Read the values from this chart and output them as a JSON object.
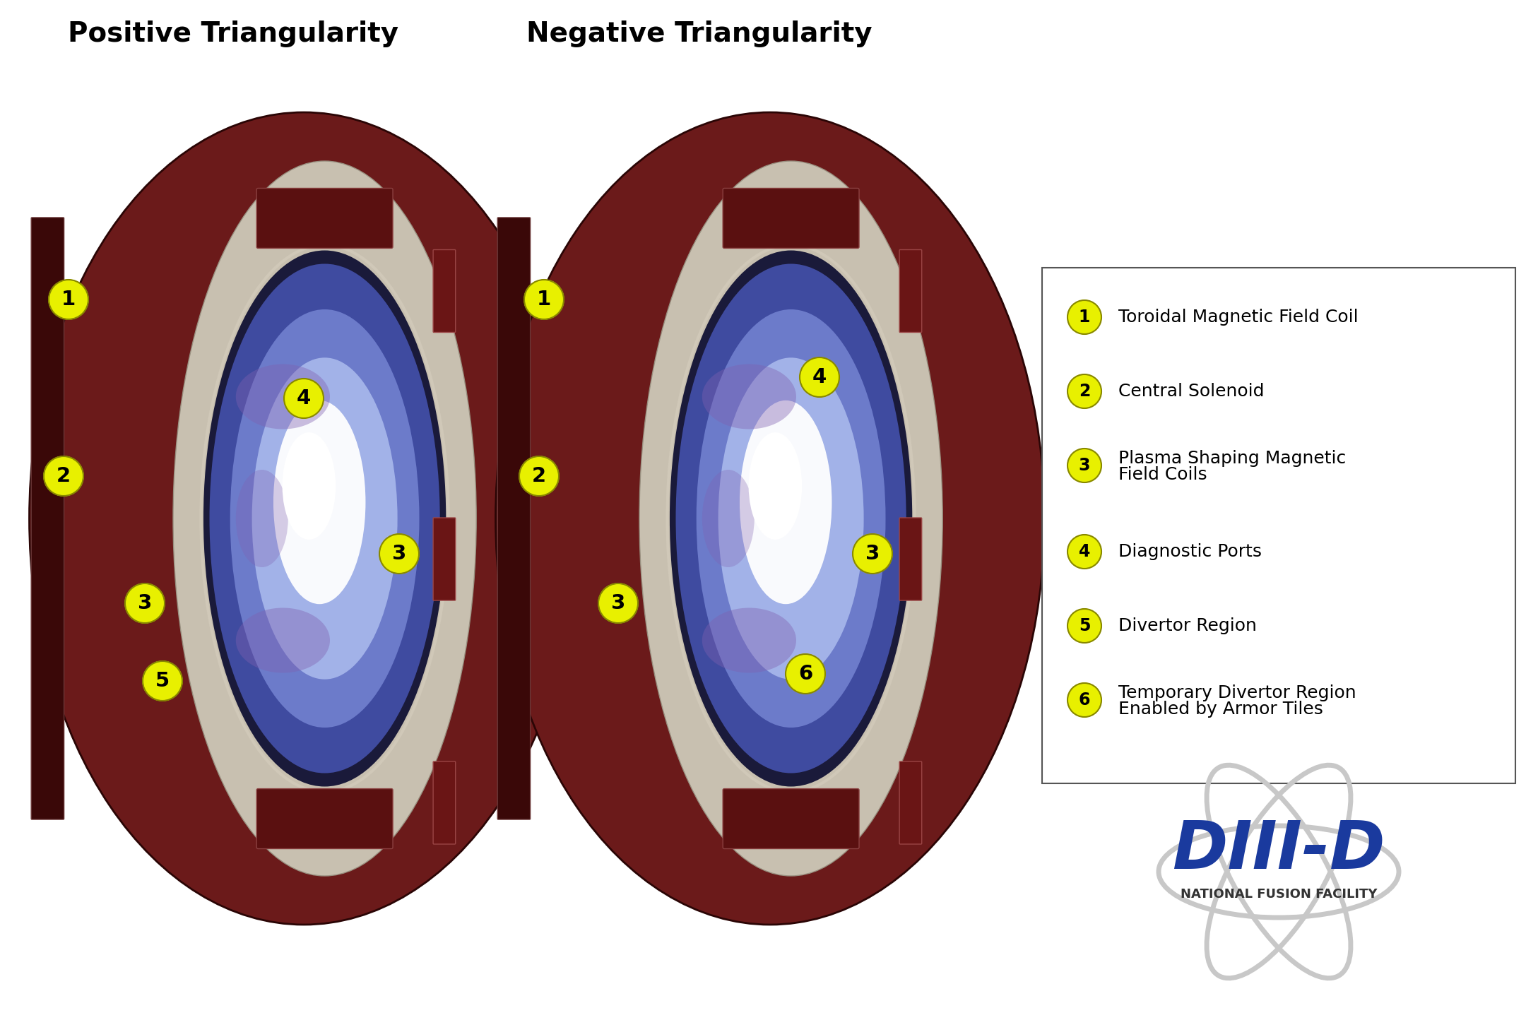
{
  "title_left": "Positive Triangularity",
  "title_right": "Negative Triangularity",
  "background_color": "#ffffff",
  "title_fontsize": 28,
  "title_fontweight": "bold",
  "legend_items": [
    {
      "num": "1",
      "text": "Toroidal Magnetic Field Coil"
    },
    {
      "num": "2",
      "text": "Central Solenoid"
    },
    {
      "num": "3",
      "text": "Plasma Shaping Magnetic\nField Coils"
    },
    {
      "num": "4",
      "text": "Diagnostic Ports"
    },
    {
      "num": "5",
      "text": "Divertor Region"
    },
    {
      "num": "6",
      "text": "Temporary Divertor Region\nEnabled by Armor Tiles"
    }
  ],
  "badge_color": "#e8f000",
  "badge_text_color": "#000000",
  "legend_text_color": "#000000",
  "legend_fontsize": 18,
  "diii_d_color": "#1a3a9e",
  "diii_d_subtitle_color": "#333333",
  "reactor_dark_red": "#6b1a1a",
  "reactor_mid_red": "#8b2222",
  "plasma_blue": "#a0b4ff",
  "plasma_white": "#e8eeff",
  "plasma_purple": "#c8a0e8"
}
